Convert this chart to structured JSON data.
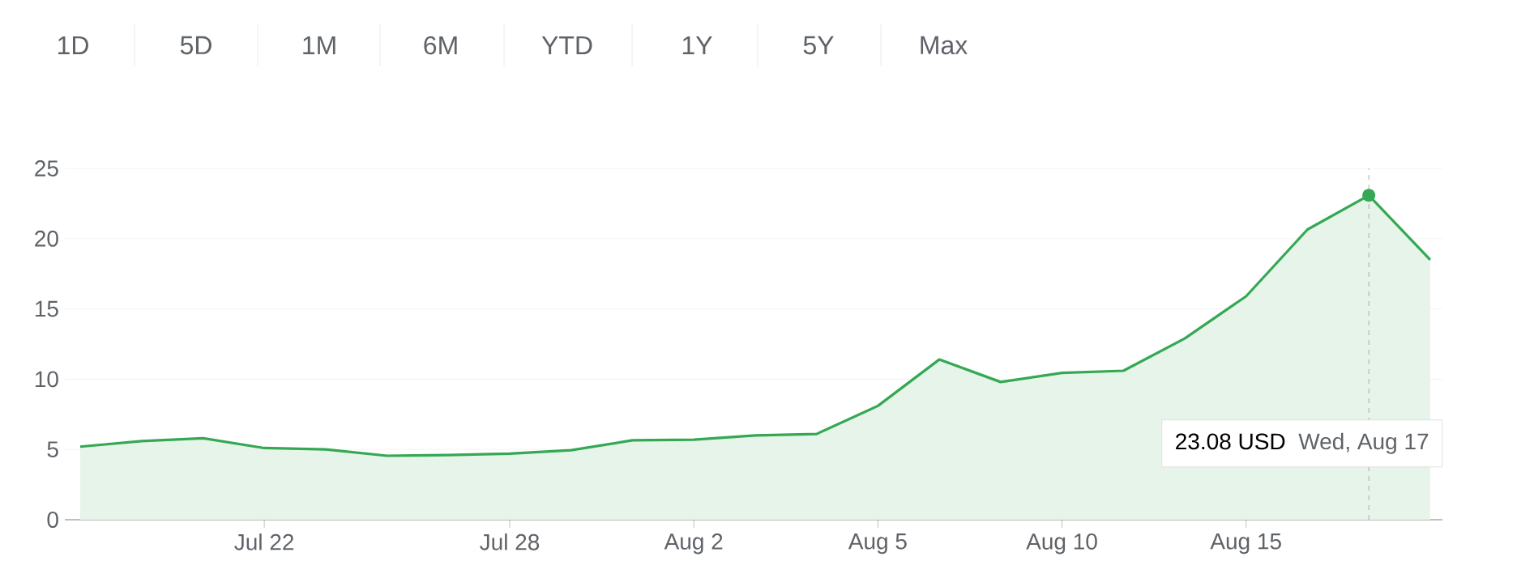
{
  "chart_data": {
    "type": "area",
    "color": "#34a853",
    "categories": [
      null,
      null,
      null,
      "Jul 22",
      null,
      null,
      null,
      "Jul 28",
      null,
      null,
      "Aug 2",
      null,
      null,
      "Aug 5",
      null,
      null,
      "Aug 10",
      null,
      null,
      "Aug 15",
      null,
      null,
      null
    ],
    "values": [
      5.2,
      5.6,
      5.8,
      5.1,
      5.0,
      4.55,
      4.6,
      4.7,
      4.95,
      5.65,
      5.7,
      6.0,
      6.1,
      8.1,
      11.4,
      9.8,
      10.45,
      10.6,
      12.9,
      15.9,
      20.65,
      23.08,
      18.5
    ],
    "ylim": [
      0,
      25
    ],
    "yticks": [
      0,
      5,
      10,
      15,
      20,
      25
    ],
    "grid": "y",
    "annotations": [
      "1D",
      "5D",
      "1M",
      "6M",
      "YTD",
      "1Y",
      "5Y",
      "Max",
      "23.08 USD",
      "Wed, Aug 17"
    ]
  }
}
